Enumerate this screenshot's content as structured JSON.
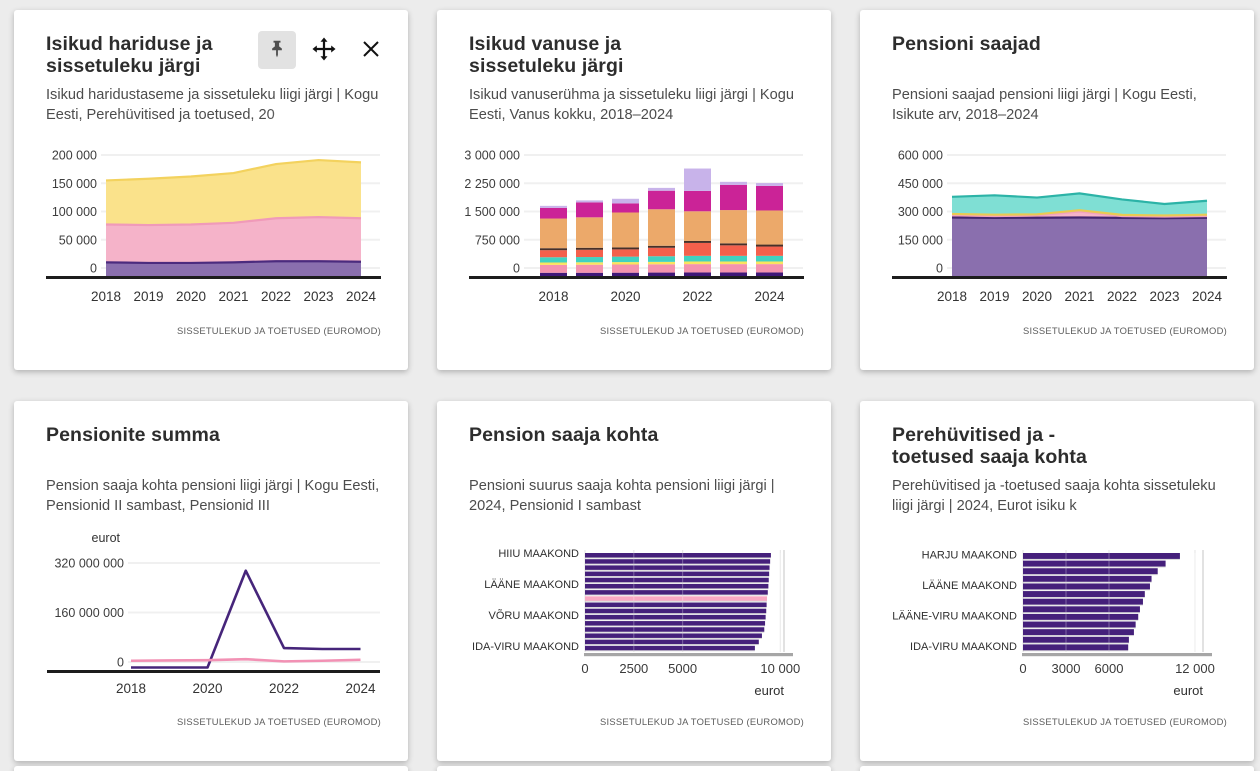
{
  "page": {
    "background_color": "#ececec",
    "card_color": "#ffffff"
  },
  "shared": {
    "source": "SISSETULEKUD JA TOETUSED (EUROMOD)"
  },
  "toolbar": {
    "pin_icon": "pushpin-icon",
    "move_icon": "move-icon",
    "close_icon": "close-icon"
  },
  "cards": [
    {
      "title": "Isikud hariduse ja\nsissetuleku järgi",
      "subtitle": "Isikud haridustaseme ja sissetuleku liigi järgi | Kogu Eesti, Perehüvitised ja toetused, 20"
    },
    {
      "title": "Isikud vanuse ja\nsissetuleku järgi",
      "subtitle": "Isikud vanuserühma ja sissetuleku liigi järgi | Kogu Eesti, Vanus kokku, 2018–2024"
    },
    {
      "title": "Pensioni saajad",
      "subtitle": "Pensioni saajad pensioni liigi järgi | Kogu Eesti, Isikute arv, 2018–2024"
    },
    {
      "title": "Pensionite summa",
      "subtitle": "Pension saaja kohta pensioni liigi järgi | Kogu Eesti, Pensionid II sambast, Pensionid III"
    },
    {
      "title": "Pension saaja kohta",
      "subtitle": "Pensioni suurus saaja kohta pensioni liigi järgi | 2024, Pensionid I sambast"
    },
    {
      "title": "Perehüvitised ja -\ntoetused saaja kohta",
      "subtitle": "Perehüvitised ja -toetused saaja kohta sissetuleku liigi järgi | 2024, Eurot isiku k"
    }
  ],
  "chart_data": [
    {
      "type": "area",
      "stacked": true,
      "title": "Isikud hariduse ja sissetuleku järgi",
      "categories": [
        2018,
        2019,
        2020,
        2021,
        2022,
        2023,
        2024
      ],
      "series": [
        {
          "name": "purple",
          "color": "#8a6fae",
          "edge": "#4b2b7e",
          "values": [
            10000,
            9000,
            9000,
            10000,
            12000,
            12000,
            11000
          ]
        },
        {
          "name": "pink",
          "color": "#f5b3c9",
          "edge": "#f09ab9",
          "values": [
            67000,
            67000,
            68000,
            70000,
            76000,
            78000,
            77000
          ]
        },
        {
          "name": "yellow",
          "color": "#fae28b",
          "edge": "#f3d25e",
          "values": [
            78000,
            82000,
            85000,
            88000,
            96000,
            101000,
            99000
          ]
        }
      ],
      "yticks": [
        {
          "v": 0,
          "label": "0"
        },
        {
          "v": 50000,
          "label": "50 000"
        },
        {
          "v": 100000,
          "label": "100 000"
        },
        {
          "v": 150000,
          "label": "150 000"
        },
        {
          "v": 200000,
          "label": "200 000"
        }
      ],
      "ylim": [
        0,
        200000
      ],
      "xtick_every": 1,
      "grid": true,
      "legend": false
    },
    {
      "type": "bar",
      "stacked": true,
      "title": "Isikud vanuse ja sissetuleku järgi",
      "categories": [
        2018,
        2019,
        2020,
        2021,
        2022,
        2023,
        2024
      ],
      "series": [
        {
          "name": "dark-indigo",
          "color": "#3f1877",
          "values": [
            80000,
            80000,
            82000,
            85000,
            88000,
            88000,
            88000
          ]
        },
        {
          "name": "pink",
          "color": "#f493ae",
          "values": [
            195000,
            200000,
            203000,
            205000,
            207000,
            207000,
            207000
          ]
        },
        {
          "name": "yellow",
          "color": "#fae45e",
          "values": [
            60000,
            60000,
            60000,
            60000,
            65000,
            65000,
            65000
          ]
        },
        {
          "name": "teal",
          "color": "#41d1c1",
          "values": [
            130000,
            130000,
            135000,
            140000,
            140000,
            140000,
            140000
          ]
        },
        {
          "name": "coral",
          "color": "#f4604c",
          "values": [
            175000,
            180000,
            180000,
            210000,
            320000,
            260000,
            230000
          ]
        },
        {
          "name": "dark-divider",
          "color": "#473028",
          "values": [
            15000,
            15000,
            15000,
            15000,
            15000,
            15000,
            15000
          ]
        },
        {
          "name": "sand-orange",
          "color": "#eca96a",
          "values": [
            735000,
            755000,
            865000,
            905000,
            735000,
            825000,
            845000
          ]
        },
        {
          "name": "magenta",
          "color": "#cb2397",
          "values": [
            265000,
            370000,
            225000,
            460000,
            505000,
            625000,
            610000
          ]
        },
        {
          "name": "lavender",
          "color": "#c8b3ea",
          "values": [
            45000,
            40000,
            115000,
            70000,
            555000,
            75000,
            70000
          ]
        }
      ],
      "yticks": [
        {
          "v": 0,
          "label": "0"
        },
        {
          "v": 750000,
          "label": "750 000"
        },
        {
          "v": 1500000,
          "label": "1 500 000"
        },
        {
          "v": 2250000,
          "label": "2 250 000"
        },
        {
          "v": 3000000,
          "label": "3 000 000"
        }
      ],
      "ylim": [
        0,
        3000000
      ],
      "xtick_every": 2,
      "grid": true,
      "legend": false
    },
    {
      "type": "area",
      "stacked": true,
      "title": "Pensioni saajad",
      "categories": [
        2018,
        2019,
        2020,
        2021,
        2022,
        2023,
        2024
      ],
      "series": [
        {
          "name": "purple",
          "color": "#8a6fae",
          "edge": "#45276f",
          "values": [
            268000,
            266000,
            267000,
            268000,
            266000,
            265000,
            267000
          ]
        },
        {
          "name": "pink",
          "color": "#f5b3c9",
          "edge": "#f2a2bd",
          "values": [
            12000,
            10000,
            12000,
            32000,
            10000,
            8000,
            9000
          ]
        },
        {
          "name": "yellow",
          "color": "#f8e080",
          "edge": "#e9ca52",
          "values": [
            7000,
            7000,
            6000,
            7000,
            6000,
            6000,
            7000
          ]
        },
        {
          "name": "teal",
          "color": "#7fdfd4",
          "edge": "#2cb3a7",
          "values": [
            91000,
            103000,
            89000,
            89000,
            82000,
            61000,
            74000
          ]
        }
      ],
      "yticks": [
        {
          "v": 0,
          "label": "0"
        },
        {
          "v": 150000,
          "label": "150 000"
        },
        {
          "v": 300000,
          "label": "300 000"
        },
        {
          "v": 450000,
          "label": "450 000"
        },
        {
          "v": 600000,
          "label": "600 000"
        }
      ],
      "ylim": [
        0,
        600000
      ],
      "xtick_every": 1,
      "grid": true,
      "legend": false
    },
    {
      "type": "line",
      "title": "Pensionite summa",
      "ylabel": "eurot",
      "categories": [
        2018,
        2019,
        2020,
        2021,
        2022,
        2023,
        2024
      ],
      "series": [
        {
          "name": "dark-purple-line",
          "color": "#46257a",
          "values": [
            0,
            0,
            0,
            295000000,
            45000000,
            42000000,
            42000000
          ]
        },
        {
          "name": "pink-line",
          "color": "#f291b4",
          "values": [
            4000000,
            5000000,
            6000000,
            9000000,
            2000000,
            4000000,
            7000000
          ]
        }
      ],
      "yticks": [
        {
          "v": 0,
          "label": "0"
        },
        {
          "v": 160000000,
          "label": "160 000 000"
        },
        {
          "v": 320000000,
          "label": "320 000 000"
        }
      ],
      "ylim": [
        0,
        320000000
      ],
      "xtick_every": 2,
      "grid": true,
      "legend": false
    },
    {
      "type": "hbar",
      "title": "Pension saaja kohta",
      "xlabel": "eurot",
      "bar_color": "#45207b",
      "highlight": {
        "index": 7,
        "color": "#f9a8c3"
      },
      "values": [
        9520,
        9480,
        9450,
        9430,
        9410,
        9390,
        9360,
        9320,
        9300,
        9280,
        9250,
        9220,
        9180,
        9060,
        8900,
        8700
      ],
      "row_labels": [
        {
          "row": 0,
          "label": "HIIU MAAKOND"
        },
        {
          "row": 5,
          "label": "LÄÄNE MAAKOND"
        },
        {
          "row": 10,
          "label": "VÕRU MAAKOND"
        },
        {
          "row": 15,
          "label": "IDA-VIRU MAAKOND"
        }
      ],
      "xticks": [
        {
          "v": 0,
          "label": "0"
        },
        {
          "v": 2500,
          "label": "2500"
        },
        {
          "v": 5000,
          "label": "5000"
        },
        {
          "v": 10000,
          "label": "10 000"
        }
      ],
      "xlim": [
        0,
        10190
      ],
      "grid": true,
      "legend": false
    },
    {
      "type": "hbar",
      "title": "Perehüvitised ja -toetused saaja kohta",
      "xlabel": "eurot",
      "bar_color": "#45207b",
      "values": [
        10950,
        9950,
        9400,
        8970,
        8860,
        8500,
        8370,
        8160,
        8040,
        7860,
        7740,
        7390,
        7340
      ],
      "row_labels": [
        {
          "row": 0,
          "label": "HARJU MAAKOND"
        },
        {
          "row": 4,
          "label": "LÄÄNE MAAKOND"
        },
        {
          "row": 8,
          "label": "LÄÄNE-VIRU MAAKOND"
        },
        {
          "row": 12,
          "label": "IDA-VIRU MAAKOND"
        }
      ],
      "xticks": [
        {
          "v": 0,
          "label": "0"
        },
        {
          "v": 3000,
          "label": "3000"
        },
        {
          "v": 6000,
          "label": "6000"
        },
        {
          "v": 12000,
          "label": "12 000"
        }
      ],
      "xlim": [
        0,
        12560
      ],
      "grid": true,
      "legend": false
    }
  ]
}
